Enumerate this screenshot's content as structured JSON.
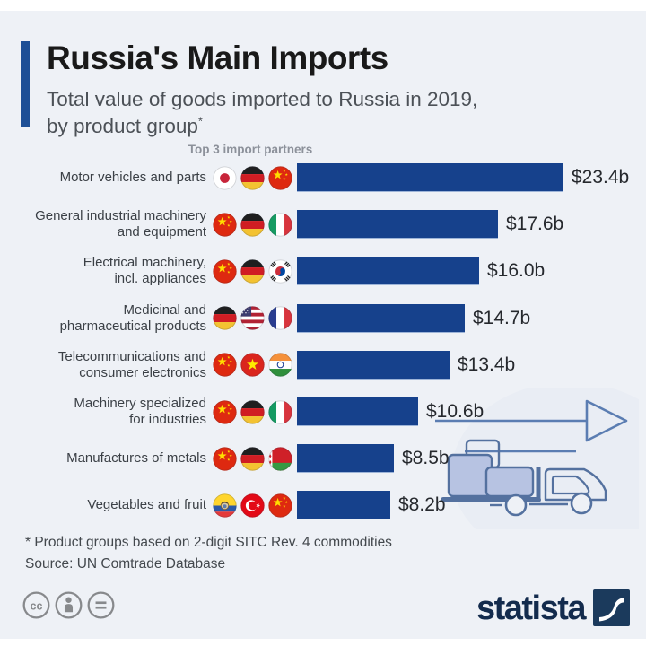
{
  "header": {
    "title": "Russia's Main Imports",
    "subtitle_line1": "Total value of goods imported to Russia in 2019,",
    "subtitle_line2": "by product group",
    "footnote_marker": "*"
  },
  "chart_data": {
    "type": "bar",
    "orientation": "horizontal",
    "title": "Russia's Main Imports",
    "subtitle": "Total value of goods imported to Russia in 2019, by product group*",
    "column_header": "Top 3 import partners",
    "unit": "USD billions",
    "xlim": [
      0,
      25
    ],
    "grid": false,
    "legend": "none",
    "bar_color": "#16418c",
    "categories": [
      "Motor vehicles and parts",
      "General industrial machinery and equipment",
      "Electrical machinery, incl. appliances",
      "Medicinal and pharmaceutical products",
      "Telecommunications and consumer electronics",
      "Machinery specialized for industries",
      "Manufactures of metals",
      "Vegetables and fruit"
    ],
    "values": [
      23.4,
      17.6,
      16.0,
      14.7,
      13.4,
      10.6,
      8.5,
      8.2
    ],
    "value_labels": [
      "$23.4b",
      "$17.6b",
      "$16.0b",
      "$14.7b",
      "$13.4b",
      "$10.6b",
      "$8.5b",
      "$8.2b"
    ],
    "rows": [
      {
        "label": "Motor vehicles and parts",
        "partners": [
          "japan",
          "germany",
          "china"
        ],
        "value": 23.4,
        "value_label": "$23.4b"
      },
      {
        "label": "General industrial machinery\nand equipment",
        "partners": [
          "china",
          "germany",
          "italy"
        ],
        "value": 17.6,
        "value_label": "$17.6b"
      },
      {
        "label": "Electrical machinery,\nincl. appliances",
        "partners": [
          "china",
          "germany",
          "south-korea"
        ],
        "value": 16.0,
        "value_label": "$16.0b"
      },
      {
        "label": "Medicinal and\npharmaceutical products",
        "partners": [
          "germany",
          "usa",
          "france"
        ],
        "value": 14.7,
        "value_label": "$14.7b"
      },
      {
        "label": "Telecommunications and\nconsumer electronics",
        "partners": [
          "china",
          "vietnam",
          "india"
        ],
        "value": 13.4,
        "value_label": "$13.4b"
      },
      {
        "label": "Machinery specialized\nfor industries",
        "partners": [
          "china",
          "germany",
          "italy"
        ],
        "value": 10.6,
        "value_label": "$10.6b"
      },
      {
        "label": "Manufactures of metals",
        "partners": [
          "china",
          "germany",
          "belarus"
        ],
        "value": 8.5,
        "value_label": "$8.5b"
      },
      {
        "label": "Vegetables and fruit",
        "partners": [
          "ecuador",
          "turkey",
          "china"
        ],
        "value": 8.2,
        "value_label": "$8.2b"
      }
    ]
  },
  "illustration": {
    "name": "truck-with-boxes-and-arrow",
    "stroke_color": "#54719f",
    "box_fill": "#b7c3e2"
  },
  "footer": {
    "footnote": "* Product groups based on 2-digit SITC Rev. 4 commodities",
    "source": "Source: UN Comtrade Database"
  },
  "branding": {
    "logo_text": "statista",
    "license_icons": [
      "cc-icon",
      "attribution-icon",
      "no-derivatives-icon"
    ]
  },
  "colors": {
    "background": "#eef1f6",
    "bar": "#16418c",
    "accent_bar": "#1d4f96",
    "title_text": "#191919",
    "subtitle_text": "#4c5157",
    "column_header_text": "#8c919a",
    "logo_navy": "#1b3a5c"
  }
}
